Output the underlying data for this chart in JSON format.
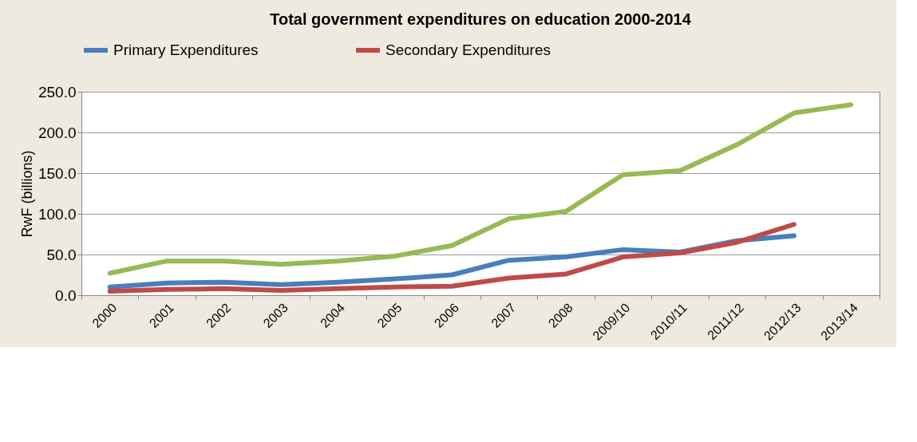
{
  "chart_data": {
    "type": "line",
    "title": "Total government expenditures on education 2000-2014",
    "ylabel": "RwF (billions)",
    "categories": [
      "2000",
      "2001",
      "2002",
      "2003",
      "2004",
      "2005",
      "2006",
      "2007",
      "2008",
      "2009/10",
      "2010/11",
      "2011/12",
      "2012/13",
      "2013/14"
    ],
    "series": [
      {
        "name": "Primary Expenditures",
        "color": "#4a7ebb",
        "values": [
          10,
          15,
          16,
          13,
          16,
          20,
          25,
          43,
          47,
          56,
          53,
          67,
          73,
          null
        ]
      },
      {
        "name": "Secondary  Expenditures",
        "color": "#be4b48",
        "values": [
          5,
          7,
          8,
          6,
          8,
          10,
          11,
          21,
          26,
          47,
          52,
          65,
          87,
          null
        ]
      },
      {
        "color": "#98b954",
        "values": [
          27,
          42,
          42,
          38,
          42,
          48,
          61,
          94,
          103,
          148,
          153,
          185,
          224,
          234
        ]
      }
    ],
    "ylim": [
      0,
      250
    ],
    "yticks": [
      {
        "value": 0,
        "label": "0.0"
      },
      {
        "value": 50,
        "label": "50.0"
      },
      {
        "value": 100,
        "label": "100.0"
      },
      {
        "value": 150,
        "label": "150.0"
      },
      {
        "value": 200,
        "label": "200.0"
      },
      {
        "value": 250,
        "label": "250.0"
      }
    ],
    "grid": "y",
    "legend": "top",
    "line_style": "solid"
  }
}
